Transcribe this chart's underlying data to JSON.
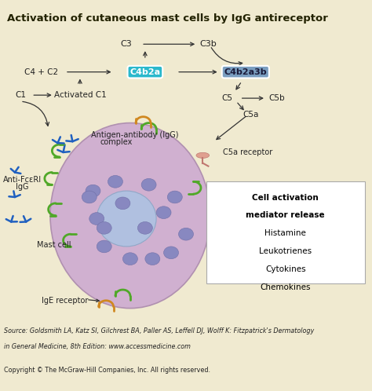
{
  "title": "Activation of cutaneous mast cells by IgG antireceptor",
  "bg_color": "#f0ead0",
  "diagram_bg": "#ede8c8",
  "title_fontsize": 9.5,
  "source_text_1": "Source: Goldsmith LA, Katz SI, Gilchrest BA, Paller AS, Leffell DJ, Wolff K: Fitzpatrick's Dermatology",
  "source_text_2": "in General Medicine, 8th Edition: www.accessmedicine.com",
  "copyright_text": "Copyright © The McGraw-Hill Companies, Inc. All rights reserved.",
  "C4b2a_color": "#2ab8cc",
  "C4b2a3b_color": "#7a9ec0",
  "cell_color": "#d0b0d0",
  "nucleus_color": "#b0c0e0",
  "granule_color": "#8888c0",
  "blue_antibody_color": "#2060c0",
  "green_receptor_color": "#50a828",
  "orange_receptor_color": "#d08820",
  "pink_receptor_color": "#e0a090"
}
